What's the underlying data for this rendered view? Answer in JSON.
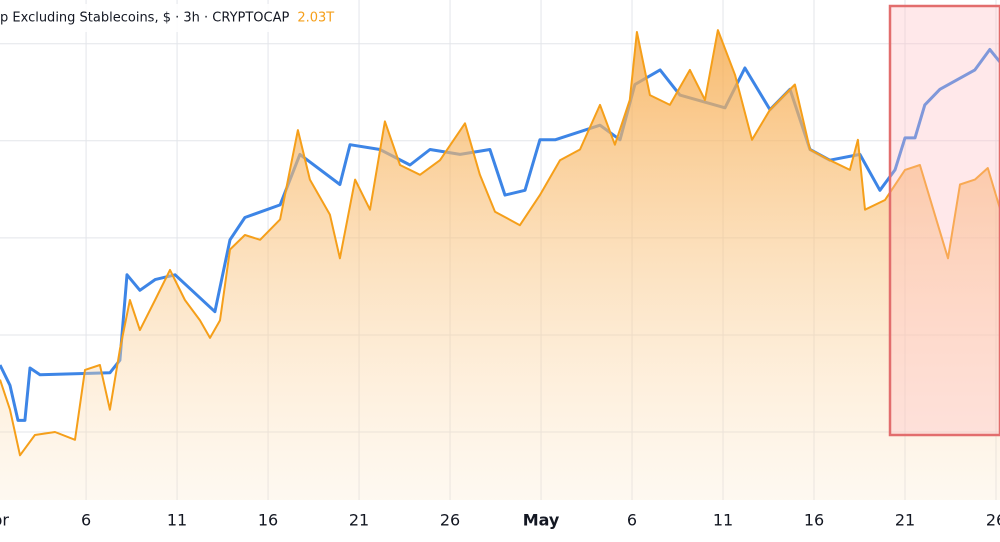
{
  "chart_data": {
    "type": "line",
    "title": "p Excluding Stablecoins, $ · 3h · CRYPTOCAP",
    "last_value_label": "2.03T",
    "xlim": [
      1.27,
      56.22
    ],
    "xticks": [
      {
        "value": 1,
        "label": "Apr"
      },
      6,
      11,
      16,
      21,
      26,
      {
        "value": 31,
        "label": "May"
      },
      {
        "value": 36,
        "label": "6"
      },
      {
        "value": 41,
        "label": "11"
      },
      {
        "value": 46,
        "label": "16"
      },
      {
        "value": 51,
        "label": "21"
      },
      {
        "value": 56,
        "label": "26"
      }
    ],
    "ylim": [
      1.73,
      2.245
    ],
    "yticks": [
      1.8,
      1.9,
      2.0,
      2.1,
      2.2
    ],
    "grid": true,
    "series": [
      {
        "color": "#3d85e6",
        "x": [
          1.27,
          1.82,
          2.26,
          2.64,
          2.92,
          3.47,
          7.31,
          7.86,
          8.25,
          8.96,
          9.79,
          10.89,
          13.08,
          13.91,
          14.73,
          16.66,
          17.75,
          19.95,
          20.5,
          22.15,
          23.8,
          24.9,
          26.55,
          28.19,
          29.02,
          30.12,
          30.94,
          31.77,
          34.24,
          35.34,
          36.16,
          37.54,
          38.63,
          41.11,
          42.2,
          43.58,
          44.68,
          45.78,
          46.87,
          48.52,
          49.62,
          50.45,
          51.0,
          51.55,
          52.09,
          52.92,
          54.84,
          55.66,
          56.22
        ],
        "values": [
          1.869,
          1.848,
          1.812,
          1.812,
          1.866,
          1.859,
          1.861,
          1.874,
          1.962,
          1.946,
          1.957,
          1.962,
          1.924,
          1.998,
          2.021,
          2.034,
          2.086,
          2.055,
          2.096,
          2.091,
          2.075,
          2.091,
          2.086,
          2.091,
          2.044,
          2.049,
          2.101,
          2.101,
          2.116,
          2.101,
          2.158,
          2.173,
          2.147,
          2.134,
          2.175,
          2.132,
          2.153,
          2.091,
          2.08,
          2.086,
          2.049,
          2.07,
          2.103,
          2.103,
          2.137,
          2.153,
          2.173,
          2.194,
          2.181
        ]
      },
      {
        "color": "#f59f1a",
        "area": true,
        "x": [
          1.27,
          1.82,
          2.37,
          3.19,
          4.29,
          5.39,
          5.94,
          6.76,
          7.31,
          7.86,
          8.41,
          8.96,
          9.79,
          10.61,
          11.43,
          12.26,
          12.81,
          13.36,
          13.91,
          14.73,
          15.56,
          16.66,
          17.64,
          18.3,
          19.4,
          19.95,
          20.78,
          21.6,
          22.42,
          23.25,
          24.35,
          25.45,
          26.82,
          27.64,
          28.47,
          29.84,
          30.94,
          32.04,
          33.14,
          34.24,
          35.06,
          35.88,
          36.27,
          36.98,
          38.08,
          39.18,
          40.01,
          40.72,
          41.66,
          42.59,
          43.58,
          44.95,
          45.78,
          46.87,
          47.97,
          48.41,
          48.8,
          49.9,
          51.0,
          51.82,
          52.64,
          53.36,
          54.02,
          54.84,
          55.55,
          56.22
        ],
        "values": [
          1.854,
          1.823,
          1.776,
          1.797,
          1.8,
          1.792,
          1.864,
          1.869,
          1.823,
          1.885,
          1.936,
          1.905,
          1.936,
          1.967,
          1.936,
          1.915,
          1.897,
          1.915,
          1.988,
          2.003,
          1.998,
          2.019,
          2.111,
          2.06,
          2.024,
          1.979,
          2.06,
          2.029,
          2.12,
          2.075,
          2.065,
          2.08,
          2.118,
          2.065,
          2.027,
          2.013,
          2.044,
          2.08,
          2.091,
          2.137,
          2.096,
          2.142,
          2.212,
          2.147,
          2.137,
          2.173,
          2.142,
          2.214,
          2.168,
          2.101,
          2.132,
          2.158,
          2.091,
          2.08,
          2.07,
          2.101,
          2.029,
          2.039,
          2.07,
          2.075,
          2.024,
          1.979,
          2.055,
          2.06,
          2.072,
          2.03
        ]
      }
    ]
  }
}
